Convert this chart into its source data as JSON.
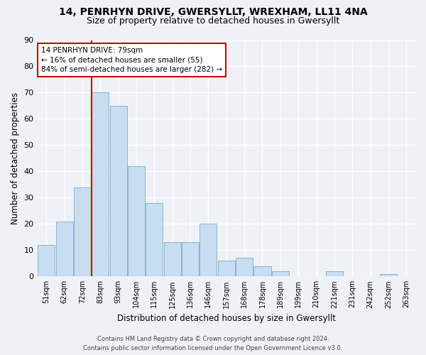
{
  "title_line1": "14, PENRHYN DRIVE, GWERSYLLT, WREXHAM, LL11 4NA",
  "title_line2": "Size of property relative to detached houses in Gwersyllt",
  "xlabel": "Distribution of detached houses by size in Gwersyllt",
  "ylabel": "Number of detached properties",
  "bar_labels": [
    "51sqm",
    "62sqm",
    "72sqm",
    "83sqm",
    "93sqm",
    "104sqm",
    "115sqm",
    "125sqm",
    "136sqm",
    "146sqm",
    "157sqm",
    "168sqm",
    "178sqm",
    "189sqm",
    "199sqm",
    "210sqm",
    "221sqm",
    "231sqm",
    "242sqm",
    "252sqm",
    "263sqm"
  ],
  "bar_values": [
    12,
    21,
    34,
    70,
    65,
    42,
    28,
    13,
    13,
    20,
    6,
    7,
    4,
    2,
    0,
    0,
    2,
    0,
    0,
    1,
    0
  ],
  "bar_color": "#c8ddf0",
  "bar_edge_color": "#8ab4d4",
  "vline_color": "#cc0000",
  "ylim": [
    0,
    90
  ],
  "yticks": [
    0,
    10,
    20,
    30,
    40,
    50,
    60,
    70,
    80,
    90
  ],
  "annotation_title": "14 PENRHYN DRIVE: 79sqm",
  "annotation_line2": "← 16% of detached houses are smaller (55)",
  "annotation_line3": "84% of semi-detached houses are larger (282) →",
  "annotation_box_color": "#ffffff",
  "annotation_box_edge": "#cc0000",
  "footer_line1": "Contains HM Land Registry data © Crown copyright and database right 2024.",
  "footer_line2": "Contains public sector information licensed under the Open Government Licence v3.0.",
  "background_color": "#eef2f7",
  "grid_color": "#ffffff",
  "title_fontsize": 10,
  "subtitle_fontsize": 9
}
